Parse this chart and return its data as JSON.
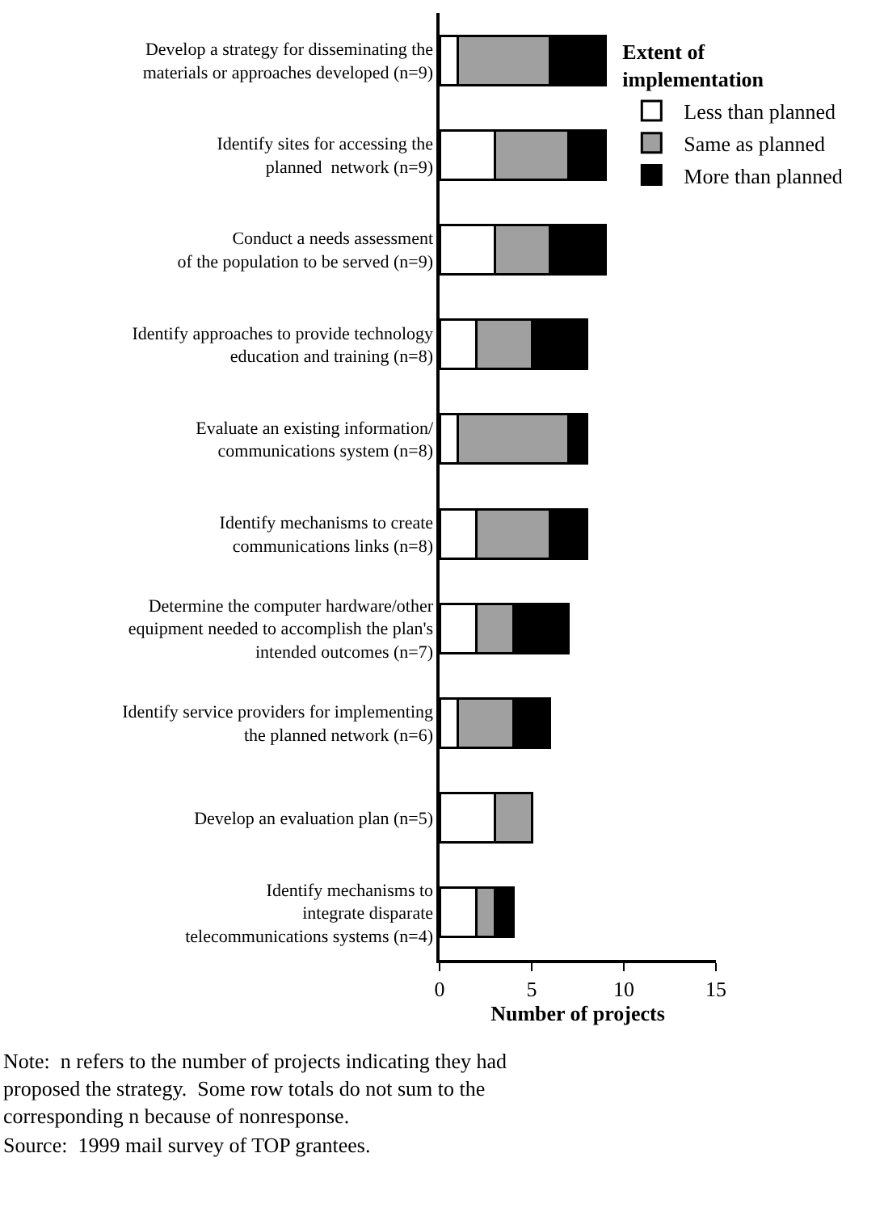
{
  "chart_data": {
    "type": "bar",
    "orientation": "horizontal",
    "stacked": true,
    "categories": [
      "Develop a strategy for disseminating the\nmaterials or approaches developed (n=9)",
      "Identify sites for accessing the\nplanned  network (n=9)",
      "Conduct a needs assessment\nof the population to be served (n=9)",
      "Identify approaches to provide technology\neducation and training (n=8)",
      "Evaluate an existing information/\ncommunications system (n=8)",
      "Identify mechanisms to create\ncommunications links (n=8)",
      "Determine the computer hardware/other\nequipment needed to accomplish the plan's\nintended outcomes (n=7)",
      "Identify service providers for implementing\nthe planned network (n=6)",
      "Develop an evaluation plan (n=5)",
      "Identify mechanisms to\nintegrate disparate\ntelecommunications systems (n=4)"
    ],
    "series": [
      {
        "name": "Less than planned",
        "color": "#ffffff",
        "values": [
          1,
          3,
          3,
          2,
          1,
          2,
          2,
          1,
          3,
          2
        ]
      },
      {
        "name": "Same as planned",
        "color": "#a0a0a0",
        "values": [
          5,
          4,
          3,
          3,
          6,
          4,
          2,
          3,
          2,
          1
        ]
      },
      {
        "name": "More than planned",
        "color": "#000000",
        "values": [
          3,
          2,
          3,
          3,
          1,
          2,
          3,
          2,
          0,
          1
        ]
      }
    ],
    "xlim": [
      0,
      15
    ],
    "xticks": [
      0,
      5,
      10,
      15
    ],
    "xlabel": "Number of projects",
    "legend_title": "Extent of\nimplementation",
    "legend": "top right",
    "annotations": [
      "Note:  n refers to the number of projects indicating they had proposed the strategy.  Some row totals do not sum to the corresponding n because of nonresponse.",
      "Source:  1999 mail survey of TOP grantees."
    ]
  }
}
